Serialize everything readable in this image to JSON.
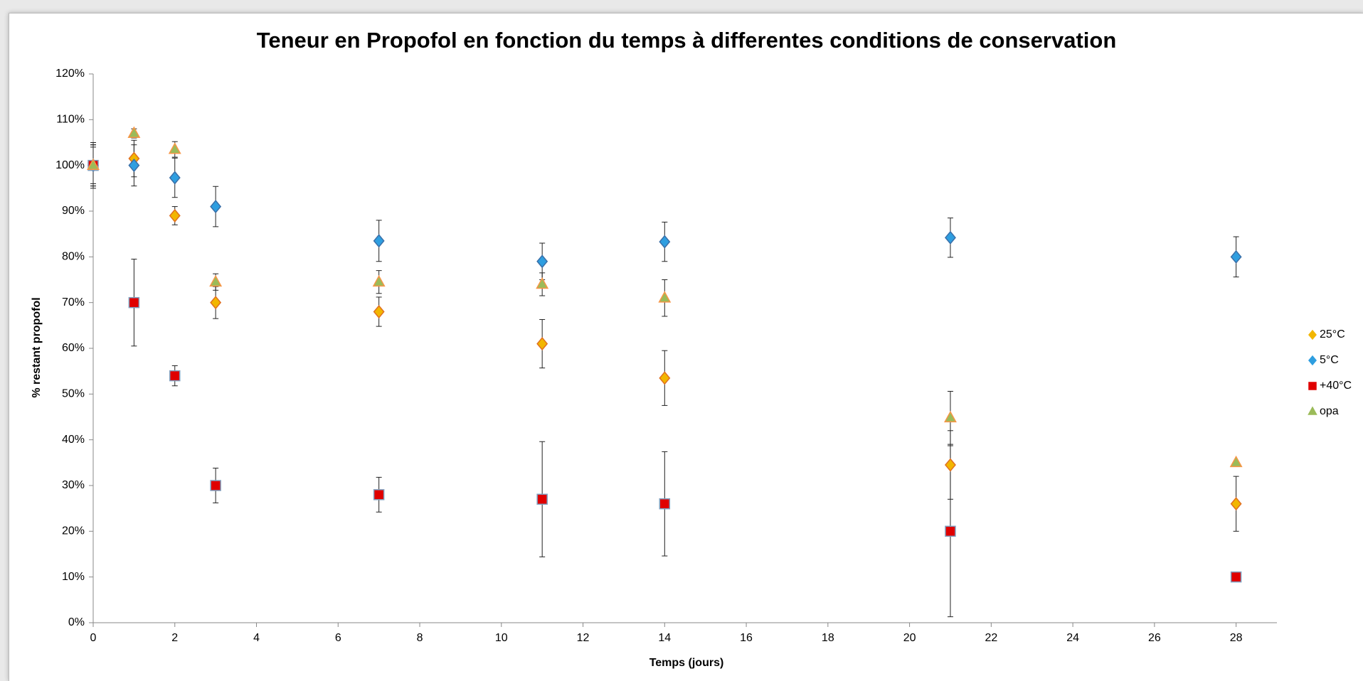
{
  "chart_data": {
    "type": "scatter",
    "title": "Teneur en Propofol en fonction du temps à differentes conditions de conservation",
    "xlabel": "Temps (jours)",
    "ylabel": "% restant propofol",
    "x": [
      0,
      1,
      2,
      3,
      7,
      11,
      14,
      21,
      28
    ],
    "series": [
      {
        "name": "25°C",
        "color": "#f2b600",
        "edge": "#e07020",
        "marker": "diamond",
        "values": [
          100,
          101.5,
          89,
          70,
          68,
          61,
          53.5,
          34.5,
          26
        ],
        "errors": [
          4.5,
          4,
          2,
          3.5,
          3.2,
          5.3,
          6,
          7.5,
          6
        ]
      },
      {
        "name": "5°C",
        "color": "#2e9ee0",
        "edge": "#3a6fa8",
        "marker": "diamond",
        "values": [
          100,
          100,
          97.3,
          91,
          83.5,
          79,
          83.3,
          84.2,
          80
        ],
        "errors": [
          5,
          4.5,
          4.3,
          4.4,
          4.5,
          4,
          4.3,
          4.3,
          4.4
        ]
      },
      {
        "name": "+40°C",
        "color": "#e00000",
        "edge": "#7f9fbf",
        "marker": "square",
        "values": [
          100,
          70,
          54,
          30,
          28,
          27,
          26,
          20,
          10
        ],
        "errors": [
          4.5,
          9.5,
          2.2,
          3.8,
          3.8,
          12.6,
          11.4,
          18.7,
          0
        ]
      },
      {
        "name": "opa",
        "color": "#9bbb59",
        "edge": "#f79646",
        "marker": "triangle",
        "values": [
          100,
          107,
          103.5,
          74.5,
          74.5,
          74,
          71,
          44.8,
          35
        ],
        "errors": [
          4,
          1,
          1.7,
          1.8,
          2.5,
          2.5,
          4,
          5.8,
          0
        ]
      }
    ],
    "xlim": [
      0,
      29
    ],
    "xticks": [
      0,
      2,
      4,
      6,
      8,
      10,
      12,
      14,
      16,
      18,
      20,
      22,
      24,
      26,
      28
    ],
    "ylim": [
      0,
      120
    ],
    "yticks": [
      {
        "value": 0,
        "label": "0%"
      },
      {
        "value": 10,
        "label": "10%"
      },
      {
        "value": 20,
        "label": "20%"
      },
      {
        "value": 30,
        "label": "30%"
      },
      {
        "value": 40,
        "label": "40%"
      },
      {
        "value": 50,
        "label": "50%"
      },
      {
        "value": 60,
        "label": "60%"
      },
      {
        "value": 70,
        "label": "70%"
      },
      {
        "value": 80,
        "label": "80%"
      },
      {
        "value": 90,
        "label": "90%"
      },
      {
        "value": 100,
        "label": "100%"
      },
      {
        "value": 110,
        "label": "110%"
      },
      {
        "value": 120,
        "label": "120%"
      }
    ],
    "legend": "right",
    "grid": false
  }
}
